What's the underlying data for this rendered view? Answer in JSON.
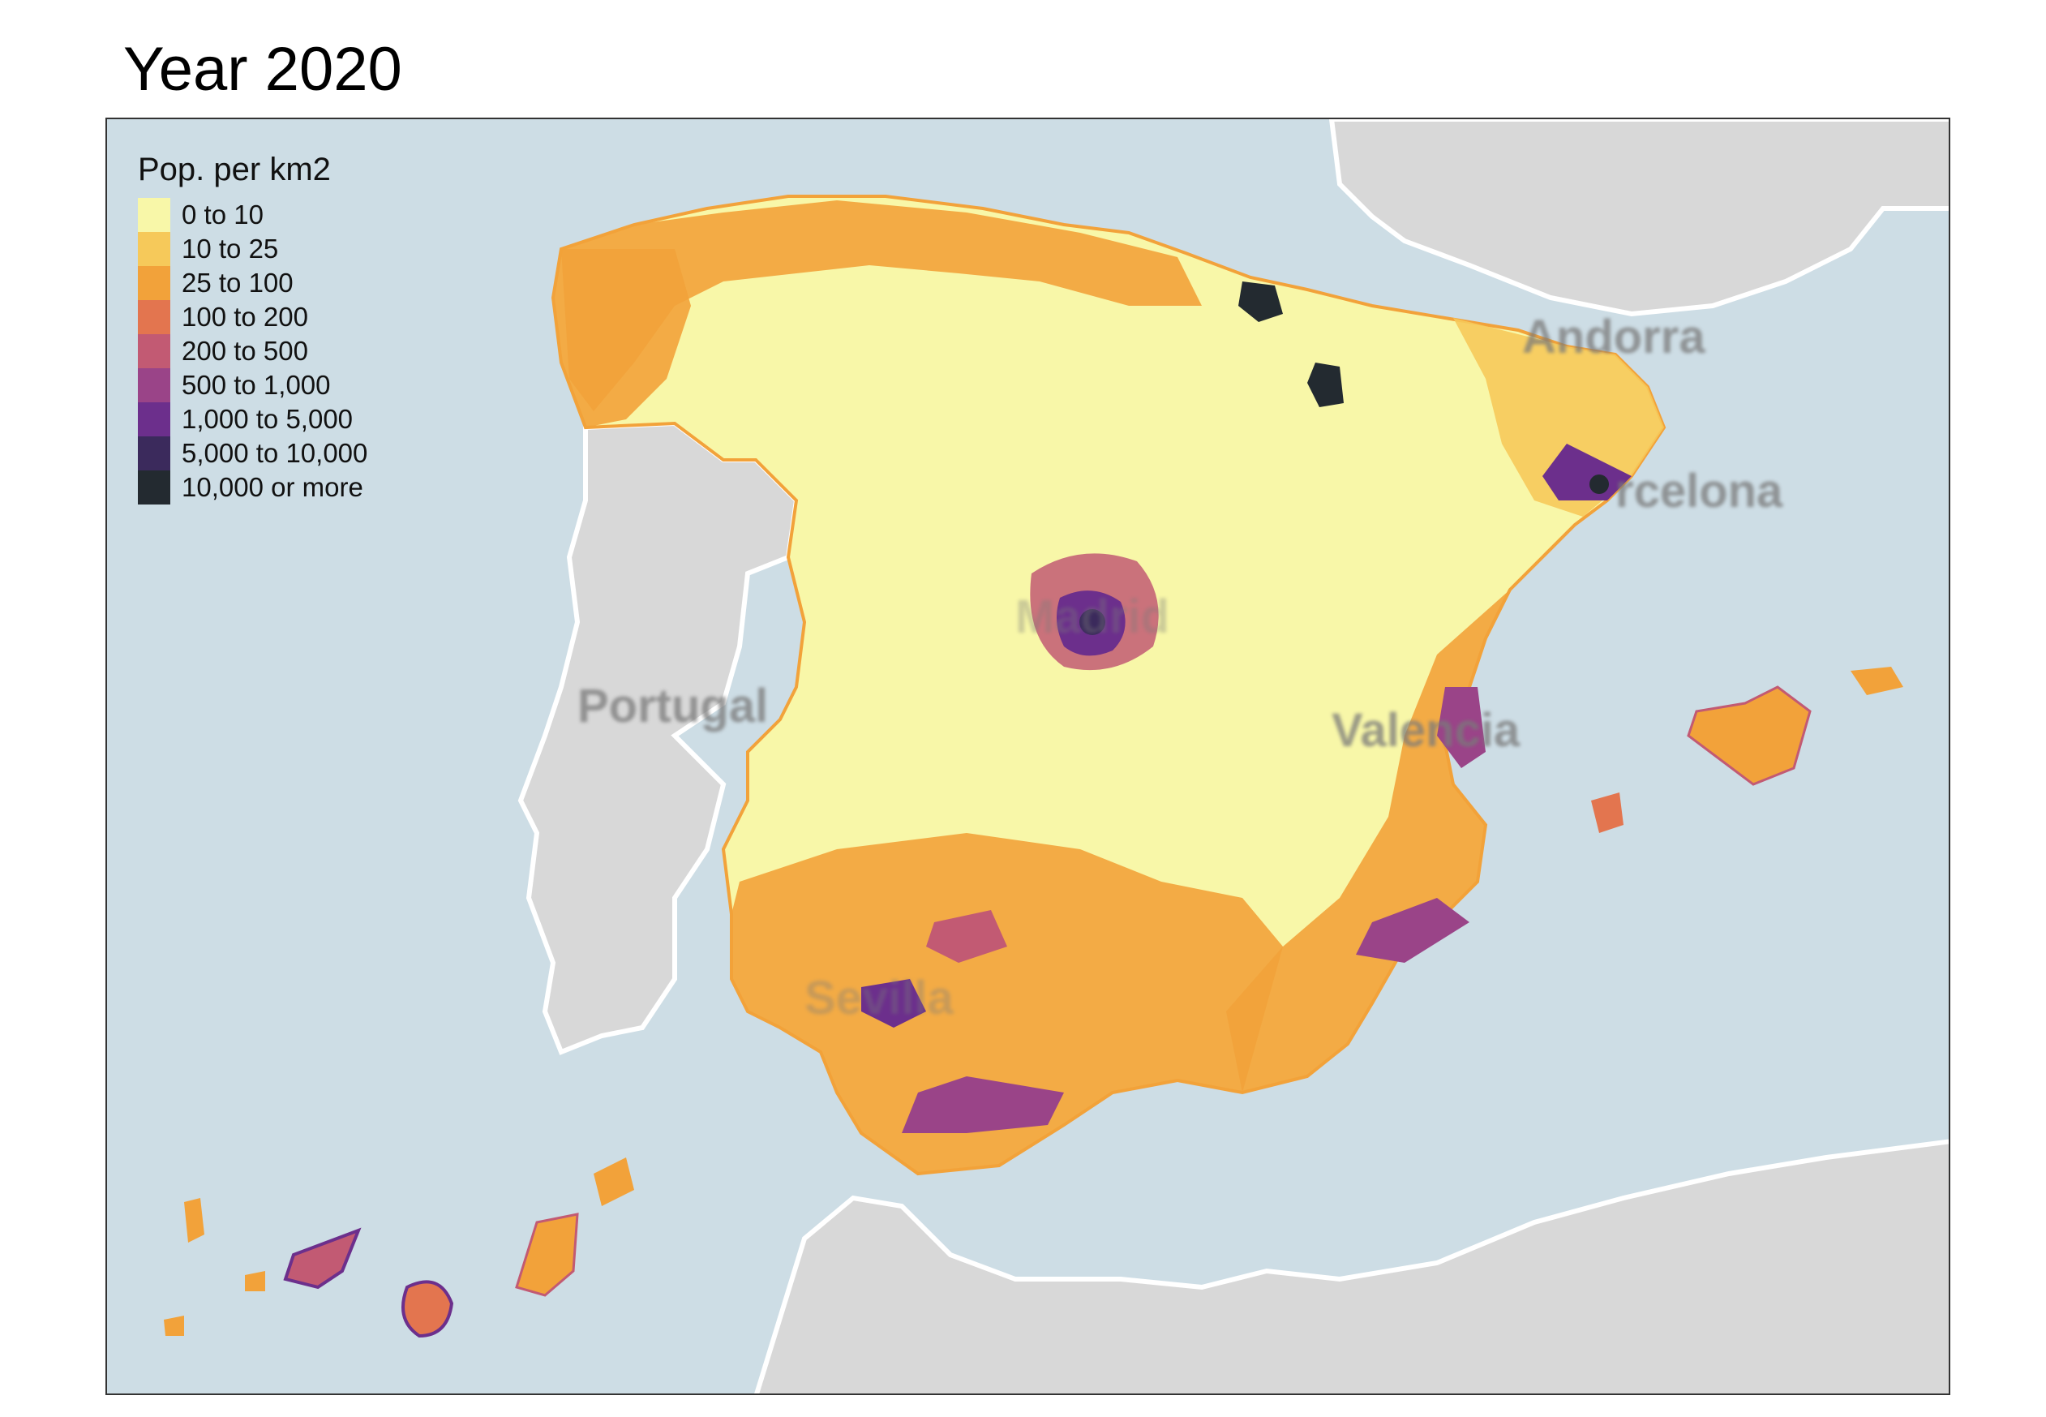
{
  "title": "Year 2020",
  "legend": {
    "title": "Pop. per km2",
    "items": [
      {
        "label": "0 to 10",
        "color": "#f8f7a8"
      },
      {
        "label": "10 to 25",
        "color": "#f6c95a"
      },
      {
        "label": "25 to 100",
        "color": "#f2a23a"
      },
      {
        "label": "100 to 200",
        "color": "#e3754f"
      },
      {
        "label": "200 to 500",
        "color": "#c25a73"
      },
      {
        "label": "500 to 1,000",
        "color": "#9a4488"
      },
      {
        "label": "1,000 to 5,000",
        "color": "#6c2f8c"
      },
      {
        "label": "5,000 to 10,000",
        "color": "#3b2a5c"
      },
      {
        "label": "10,000 or more",
        "color": "#232a30"
      }
    ]
  },
  "basemap_labels": {
    "portugal": "Portugal",
    "andorra": "Andorra",
    "barcelona": "rcelona",
    "valencia": "Valencia",
    "madrid": "Madrid",
    "sevilla": "Sevilla"
  },
  "colors": {
    "sea": "#cddde5",
    "land": "#d8d8d8",
    "border": "#ffffff"
  }
}
